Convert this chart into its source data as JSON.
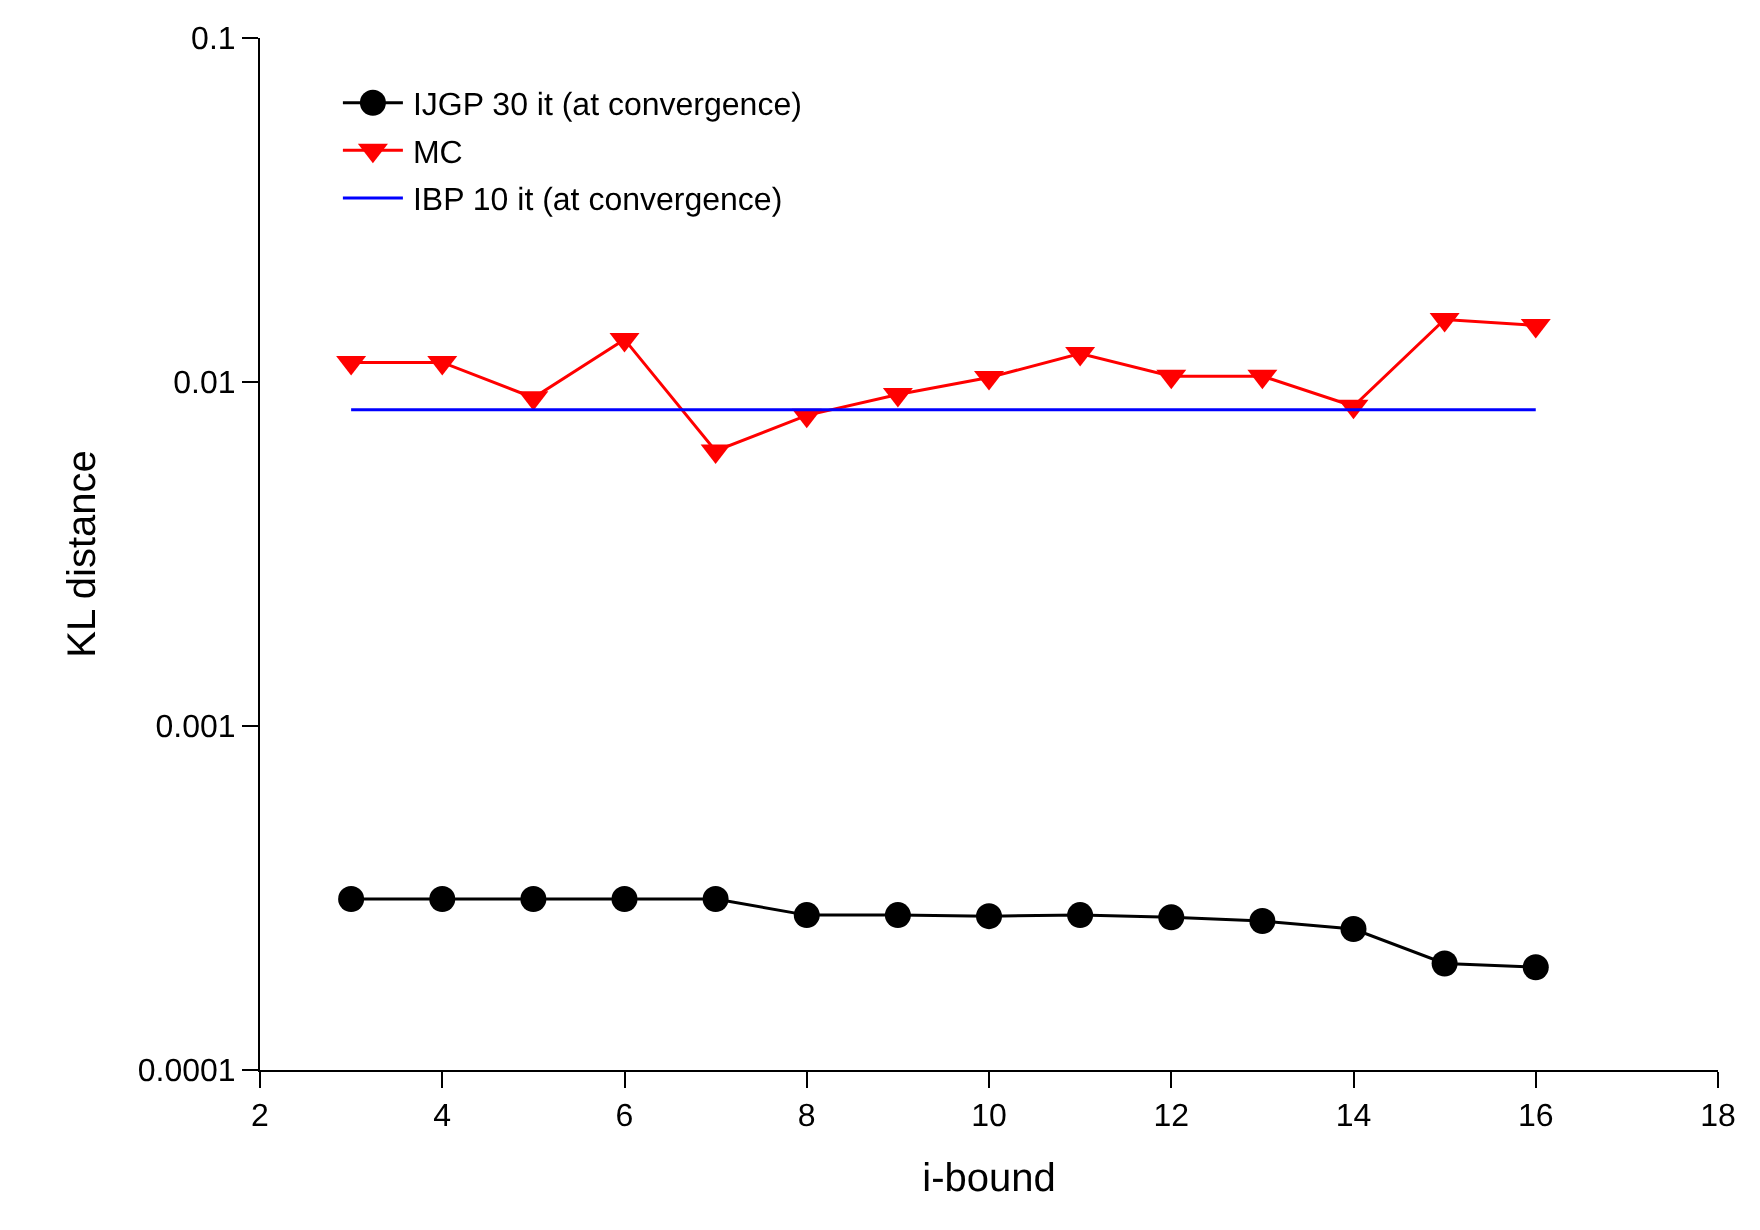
{
  "chart_data": {
    "type": "line",
    "xlabel": "i-bound",
    "ylabel": "KL distance",
    "log": "y",
    "x": [
      3,
      4,
      5,
      6,
      7,
      8,
      9,
      10,
      11,
      12,
      13,
      14,
      15,
      16
    ],
    "xlim": [
      2,
      18
    ],
    "xticks": [
      2,
      4,
      6,
      8,
      10,
      12,
      14,
      16,
      18
    ],
    "ylim": [
      0.0001,
      0.1
    ],
    "yticks": [
      0.0001,
      0.001,
      0.01,
      0.1
    ],
    "legend": "top left",
    "series": [
      {
        "name": "IJGP 30 it (at convergence)",
        "color": "#000000",
        "marker": "circle",
        "values": [
          0.000314,
          0.000314,
          0.000314,
          0.000314,
          0.000314,
          0.000282,
          0.000282,
          0.00028,
          0.000282,
          0.000278,
          0.000271,
          0.000257,
          0.000204,
          0.000199
        ]
      },
      {
        "name": "MC",
        "color": "#ff0000",
        "marker": "triangle",
        "values": [
          0.0114,
          0.0114,
          0.009,
          0.0133,
          0.0063,
          0.008,
          0.0092,
          0.0103,
          0.0121,
          0.0104,
          0.0104,
          0.0085,
          0.0152,
          0.0146
        ]
      },
      {
        "name": "IBP 10 it (at convergence)",
        "color": "#0000ff",
        "marker": "none",
        "values": [
          0.0083,
          0.0083,
          0.0083,
          0.0083,
          0.0083,
          0.0083,
          0.0083,
          0.0083,
          0.0083,
          0.0083,
          0.0083,
          0.0083,
          0.0083,
          0.0083
        ]
      }
    ]
  }
}
